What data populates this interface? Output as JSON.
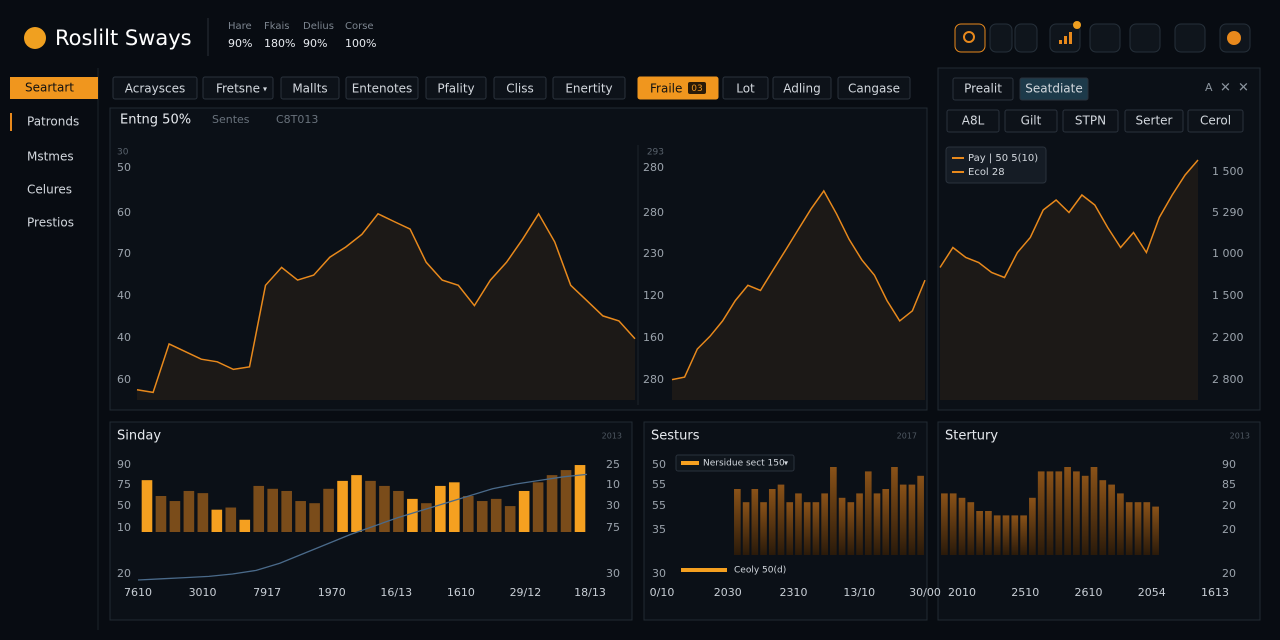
{
  "header": {
    "logo": "Roslilt Sways",
    "stats": [
      {
        "label": "Hare",
        "value": "90%"
      },
      {
        "label": "Fkais",
        "value": "180%"
      },
      {
        "label": "Delius",
        "value": "90%"
      },
      {
        "label": "Corse",
        "value": "100%"
      }
    ]
  },
  "sidebar": {
    "items": [
      "Seartart",
      "Patronds",
      "Mstmes",
      "Celures",
      "Prestios"
    ],
    "active": 0
  },
  "tabs": {
    "items": [
      "Acraysces",
      "Fretsne",
      "Mallts",
      "Entenotes",
      "Pfality",
      "Cliss",
      "Enertity",
      "Fraile",
      "Lot",
      "Adling",
      "Cangase"
    ],
    "active": 7,
    "badge": "03"
  },
  "subtabs": [
    "Entng 50%",
    "Sentes",
    "C8T013"
  ],
  "main": {
    "color": "#e8891c",
    "ylim": [
      0,
      100
    ],
    "left_top": "30",
    "left_labels": [
      "50",
      "60",
      "70",
      "40",
      "40",
      "60"
    ],
    "mid_top": "293",
    "mid_labels": [
      "280",
      "280",
      "230",
      "120",
      "160",
      "280"
    ],
    "values": [
      4,
      3,
      22,
      19,
      16,
      15,
      12,
      13,
      45,
      52,
      47,
      49,
      56,
      60,
      65,
      73,
      70,
      67,
      54,
      47,
      45,
      37,
      47,
      54,
      63,
      73,
      62,
      45,
      39,
      33,
      31,
      24
    ],
    "values2": [
      8,
      9,
      20,
      25,
      31,
      39,
      45,
      43,
      51,
      59,
      67,
      75,
      82,
      73,
      63,
      55,
      49,
      39,
      31,
      35,
      47
    ]
  },
  "side": {
    "buttons": [
      "Prealit",
      "Seatdiate"
    ],
    "active": 1,
    "row": [
      "A8L",
      "Gilt",
      "STPN",
      "Serter",
      "Cerol"
    ],
    "legend": [
      "Pay | 50 5(10)",
      "Ecol 28"
    ],
    "right_labels": [
      "1 500",
      "5 290",
      "1 000",
      "1 500",
      "2 200",
      "2 800"
    ],
    "ylim": [
      0,
      100
    ],
    "values": [
      53,
      61,
      57,
      55,
      51,
      49,
      59,
      65,
      76,
      80,
      75,
      82,
      78,
      69,
      61,
      67,
      59,
      73,
      82,
      90,
      96
    ]
  },
  "panels": [
    {
      "title": "Sinday",
      "corner": "2013",
      "left_labels": [
        "90",
        "75",
        "50",
        "10",
        "20"
      ],
      "right_labels": [
        "25",
        "10",
        "30",
        "75",
        "30"
      ],
      "x_labels": [
        "7610",
        "3010",
        "7917",
        "1970",
        "16/13",
        "1610",
        "29/12",
        "18/13"
      ],
      "ylim": [
        0,
        100
      ],
      "values": [
        72,
        50,
        43,
        57,
        54,
        31,
        34,
        17,
        64,
        60,
        57,
        43,
        40,
        60,
        71,
        79,
        71,
        64,
        57,
        46,
        40,
        64,
        69,
        50,
        43,
        46,
        36,
        57,
        69,
        79,
        86,
        93
      ],
      "highlight": [
        0,
        5,
        7,
        14,
        15,
        19,
        21,
        22,
        27,
        31
      ],
      "trend": [
        0,
        1,
        2,
        3,
        5,
        8,
        14,
        22,
        30,
        38,
        45,
        52,
        58,
        64,
        70,
        76,
        80,
        83,
        86,
        88
      ],
      "trend_ylim": [
        0,
        100
      ]
    },
    {
      "title": "Sesturs",
      "corner": "2017",
      "left_labels": [
        "50",
        "55",
        "55",
        "35",
        "30"
      ],
      "x_labels": [
        "0/10",
        "2030",
        "2310",
        "13/10",
        "30/00"
      ],
      "legend": [
        "Nersidue sect 150",
        "Ceoly 50(d)"
      ],
      "ylim": [
        0,
        100
      ],
      "values": [
        75,
        60,
        75,
        60,
        75,
        80,
        60,
        70,
        60,
        60,
        70,
        100,
        65,
        60,
        70,
        95,
        70,
        75,
        100,
        80,
        80,
        90
      ],
      "highlight": []
    },
    {
      "title": "Stertury",
      "corner": "2013",
      "right_labels": [
        "90",
        "85",
        "20",
        "20",
        "20"
      ],
      "x_labels": [
        "2010",
        "2510",
        "2610",
        "2054",
        "1613"
      ],
      "ylim": [
        0,
        100
      ],
      "values": [
        70,
        70,
        65,
        60,
        50,
        50,
        45,
        45,
        45,
        45,
        65,
        95,
        95,
        95,
        100,
        95,
        90,
        100,
        85,
        80,
        70,
        60,
        60,
        60,
        55
      ],
      "highlight": []
    }
  ]
}
